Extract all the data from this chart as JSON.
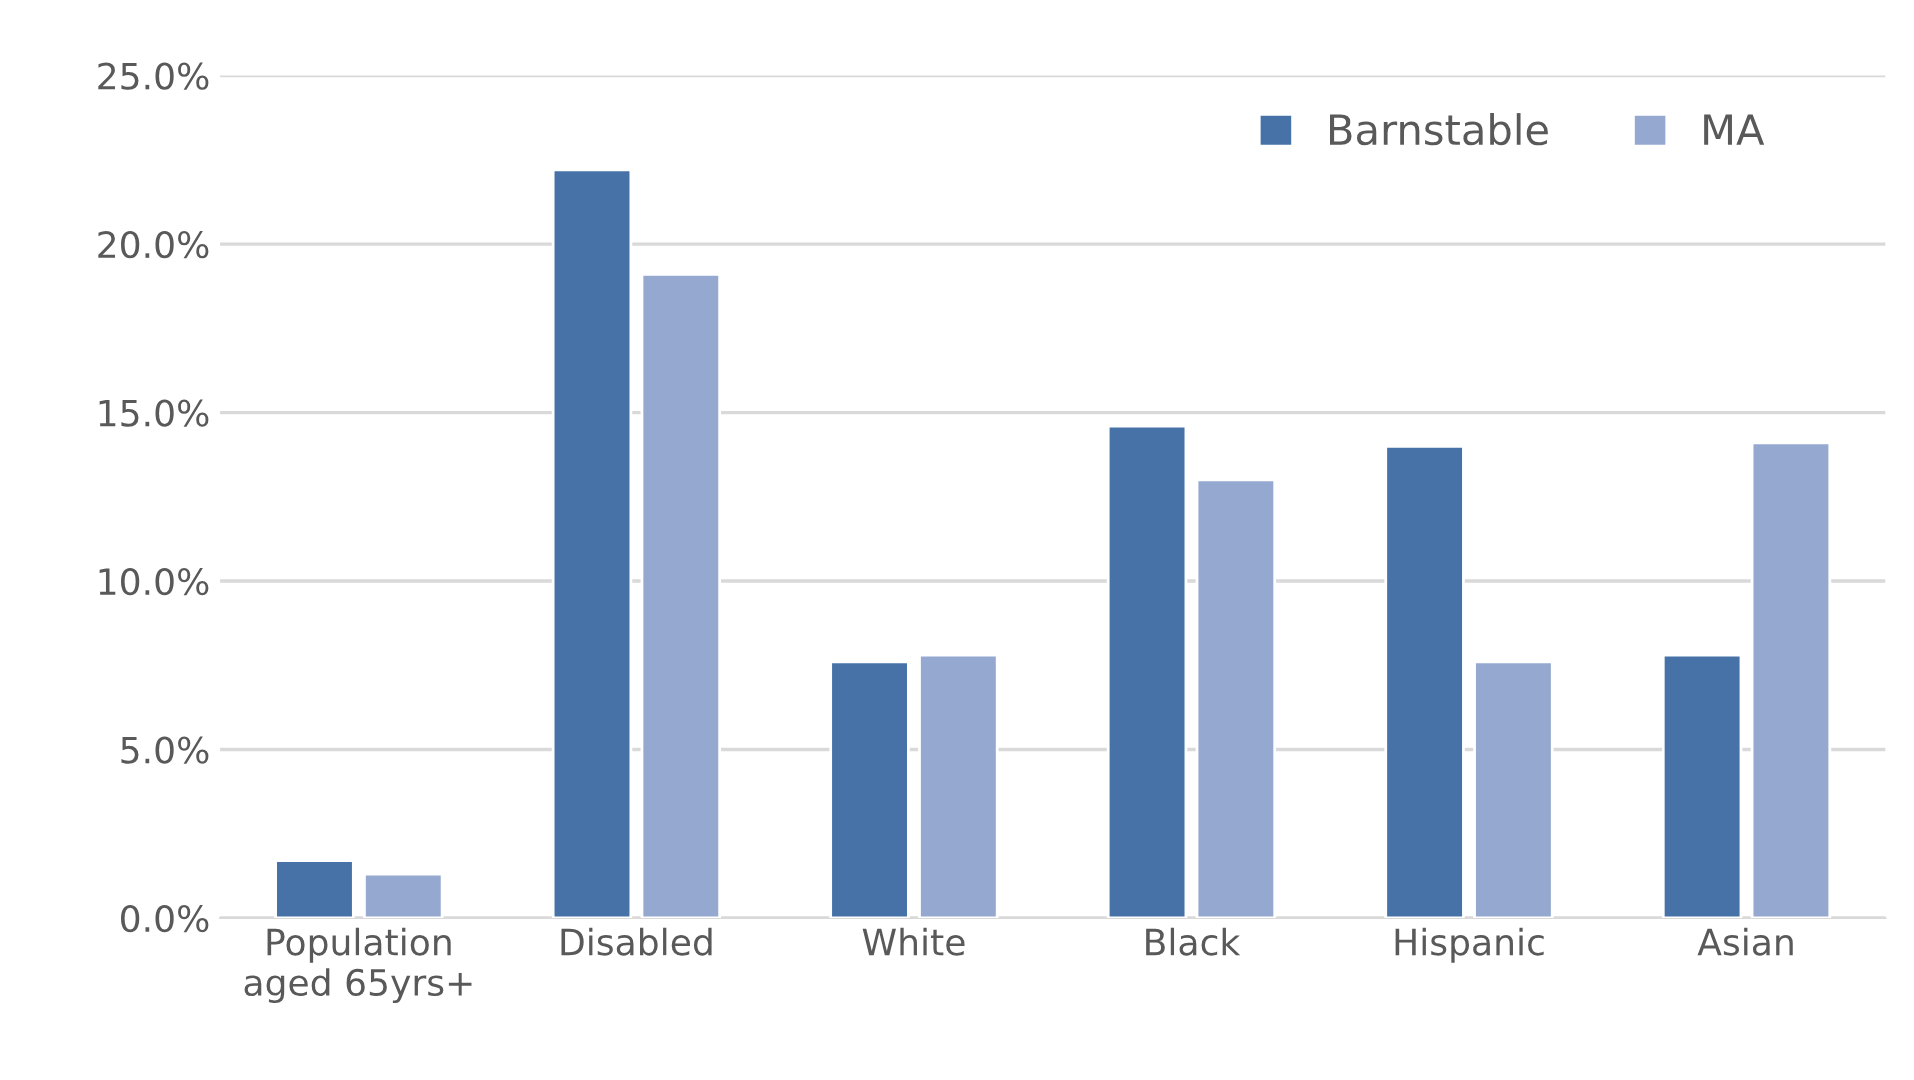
{
  "chart_data": {
    "type": "bar",
    "categories": [
      "Population\naged 65yrs+",
      "Disabled",
      "White",
      "Black",
      "Hispanic",
      "Asian"
    ],
    "series": [
      {
        "name": "Barnstable",
        "color": "#4672a7",
        "values": [
          1.7,
          22.2,
          7.6,
          14.6,
          14.0,
          7.8
        ]
      },
      {
        "name": "MA",
        "color": "#95a9d0",
        "values": [
          1.3,
          19.1,
          7.8,
          13.0,
          7.6,
          14.1
        ]
      }
    ],
    "ylim": [
      0,
      25
    ],
    "yticks": [
      {
        "value": 0,
        "label": "0.0%"
      },
      {
        "value": 5,
        "label": "5.0%"
      },
      {
        "value": 10,
        "label": "10.0%"
      },
      {
        "value": 15,
        "label": "15.0%"
      },
      {
        "value": 20,
        "label": "20.0%"
      },
      {
        "value": 25,
        "label": "25.0%"
      }
    ],
    "grid": "y",
    "legend": "top right"
  }
}
